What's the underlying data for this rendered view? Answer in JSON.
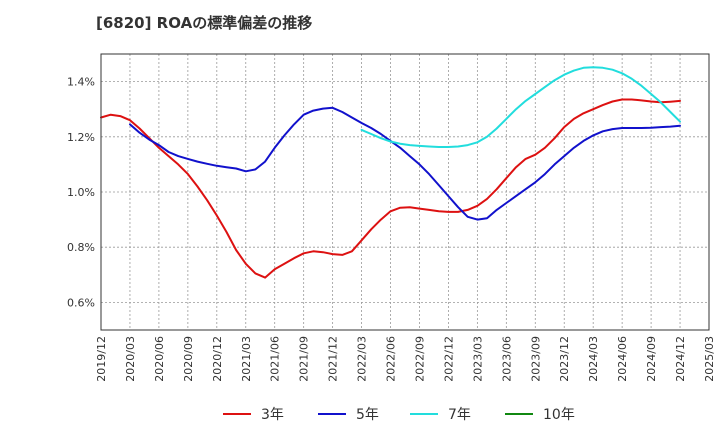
{
  "chart_data": {
    "type": "line",
    "title": "[6820]  ROAの標準偏差の推移",
    "xlabel": "",
    "ylabel": "",
    "x_range": [
      "2019-12",
      "2025-03"
    ],
    "ylim": [
      0.5,
      1.5
    ],
    "y_ticks": [
      0.6,
      0.8,
      1.0,
      1.2,
      1.4
    ],
    "y_tick_labels": [
      "0.6%",
      "0.8%",
      "1.0%",
      "1.2%",
      "1.4%"
    ],
    "x_tick_labels": [
      "2019/12",
      "2020/03",
      "2020/06",
      "2020/09",
      "2020/12",
      "2021/03",
      "2021/06",
      "2021/09",
      "2021/12",
      "2022/03",
      "2022/06",
      "2022/09",
      "2022/12",
      "2023/03",
      "2023/06",
      "2023/09",
      "2023/12",
      "2024/03",
      "2024/06",
      "2024/09",
      "2024/12",
      "2025/03"
    ],
    "grid": true,
    "legend_position": "bottom",
    "series": [
      {
        "name": "3年",
        "color": "#dd1111",
        "x": [
          "2019-12",
          "2020-01",
          "2020-02",
          "2020-03",
          "2020-04",
          "2020-05",
          "2020-06",
          "2020-07",
          "2020-08",
          "2020-09",
          "2020-10",
          "2020-11",
          "2020-12",
          "2021-01",
          "2021-02",
          "2021-03",
          "2021-04",
          "2021-05",
          "2021-06",
          "2021-07",
          "2021-08",
          "2021-09",
          "2021-10",
          "2021-11",
          "2021-12",
          "2022-01",
          "2022-02",
          "2022-03",
          "2022-04",
          "2022-05",
          "2022-06",
          "2022-07",
          "2022-08",
          "2022-09",
          "2022-10",
          "2022-11",
          "2022-12",
          "2023-01",
          "2023-02",
          "2023-03",
          "2023-04",
          "2023-05",
          "2023-06",
          "2023-07",
          "2023-08",
          "2023-09",
          "2023-10",
          "2023-11",
          "2023-12",
          "2024-01",
          "2024-02",
          "2024-03",
          "2024-04",
          "2024-05",
          "2024-06",
          "2024-07",
          "2024-08",
          "2024-09",
          "2024-10",
          "2024-11",
          "2024-12"
        ],
        "values": [
          1.27,
          1.28,
          1.275,
          1.26,
          1.23,
          1.195,
          1.16,
          1.13,
          1.1,
          1.065,
          1.02,
          0.97,
          0.915,
          0.855,
          0.79,
          0.74,
          0.705,
          0.69,
          0.72,
          0.74,
          0.76,
          0.778,
          0.785,
          0.782,
          0.775,
          0.772,
          0.785,
          0.825,
          0.865,
          0.9,
          0.93,
          0.943,
          0.945,
          0.94,
          0.935,
          0.93,
          0.928,
          0.928,
          0.935,
          0.95,
          0.975,
          1.01,
          1.05,
          1.09,
          1.12,
          1.135,
          1.16,
          1.195,
          1.235,
          1.265,
          1.285,
          1.3,
          1.315,
          1.328,
          1.335,
          1.335,
          1.332,
          1.328,
          1.325,
          1.327,
          1.33
        ]
      },
      {
        "name": "5年",
        "color": "#1111cc",
        "x": [
          "2020-03",
          "2020-04",
          "2020-05",
          "2020-06",
          "2020-07",
          "2020-08",
          "2020-09",
          "2020-10",
          "2020-11",
          "2020-12",
          "2021-01",
          "2021-02",
          "2021-03",
          "2021-04",
          "2021-05",
          "2021-06",
          "2021-07",
          "2021-08",
          "2021-09",
          "2021-10",
          "2021-11",
          "2021-12",
          "2022-01",
          "2022-02",
          "2022-03",
          "2022-04",
          "2022-05",
          "2022-06",
          "2022-07",
          "2022-08",
          "2022-09",
          "2022-10",
          "2022-11",
          "2022-12",
          "2023-01",
          "2023-02",
          "2023-03",
          "2023-04",
          "2023-05",
          "2023-06",
          "2023-07",
          "2023-08",
          "2023-09",
          "2023-10",
          "2023-11",
          "2023-12",
          "2024-01",
          "2024-02",
          "2024-03",
          "2024-04",
          "2024-05",
          "2024-06",
          "2024-07",
          "2024-08",
          "2024-09",
          "2024-10",
          "2024-11",
          "2024-12"
        ],
        "values": [
          1.245,
          1.215,
          1.19,
          1.17,
          1.145,
          1.13,
          1.12,
          1.11,
          1.102,
          1.095,
          1.09,
          1.085,
          1.075,
          1.082,
          1.11,
          1.16,
          1.205,
          1.245,
          1.28,
          1.295,
          1.302,
          1.305,
          1.29,
          1.27,
          1.25,
          1.232,
          1.21,
          1.185,
          1.16,
          1.13,
          1.1,
          1.065,
          1.025,
          0.985,
          0.945,
          0.91,
          0.9,
          0.905,
          0.935,
          0.96,
          0.985,
          1.01,
          1.035,
          1.065,
          1.1,
          1.13,
          1.16,
          1.185,
          1.205,
          1.22,
          1.228,
          1.232,
          1.232,
          1.232,
          1.233,
          1.235,
          1.237,
          1.24
        ]
      },
      {
        "name": "7年",
        "color": "#22dddd",
        "x": [
          "2022-03",
          "2022-04",
          "2022-05",
          "2022-06",
          "2022-07",
          "2022-08",
          "2022-09",
          "2022-10",
          "2022-11",
          "2022-12",
          "2023-01",
          "2023-02",
          "2023-03",
          "2023-04",
          "2023-05",
          "2023-06",
          "2023-07",
          "2023-08",
          "2023-09",
          "2023-10",
          "2023-11",
          "2023-12",
          "2024-01",
          "2024-02",
          "2024-03",
          "2024-04",
          "2024-05",
          "2024-06",
          "2024-07",
          "2024-08",
          "2024-09",
          "2024-10",
          "2024-11",
          "2024-12"
        ],
        "values": [
          1.225,
          1.21,
          1.195,
          1.183,
          1.175,
          1.17,
          1.167,
          1.165,
          1.163,
          1.163,
          1.165,
          1.17,
          1.18,
          1.2,
          1.23,
          1.265,
          1.3,
          1.33,
          1.355,
          1.38,
          1.405,
          1.425,
          1.44,
          1.45,
          1.452,
          1.45,
          1.443,
          1.43,
          1.41,
          1.385,
          1.355,
          1.325,
          1.29,
          1.255
        ]
      },
      {
        "name": "10年",
        "color": "#118811",
        "x": [],
        "values": []
      }
    ]
  }
}
